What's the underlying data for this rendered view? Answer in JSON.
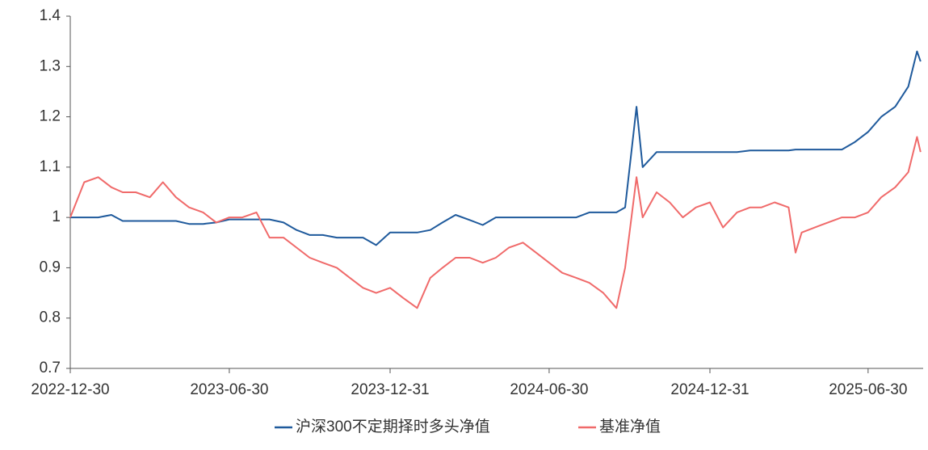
{
  "chart_data": {
    "type": "line",
    "x": [
      "2022-12-30",
      "2023-01-15",
      "2023-01-31",
      "2023-02-15",
      "2023-02-28",
      "2023-03-15",
      "2023-03-31",
      "2023-04-15",
      "2023-04-30",
      "2023-05-15",
      "2023-05-31",
      "2023-06-15",
      "2023-06-30",
      "2023-07-15",
      "2023-07-31",
      "2023-08-15",
      "2023-08-31",
      "2023-09-15",
      "2023-09-30",
      "2023-10-15",
      "2023-10-31",
      "2023-11-15",
      "2023-11-30",
      "2023-12-15",
      "2023-12-31",
      "2024-01-15",
      "2024-01-31",
      "2024-02-15",
      "2024-02-29",
      "2024-03-15",
      "2024-03-31",
      "2024-04-15",
      "2024-04-30",
      "2024-05-15",
      "2024-05-31",
      "2024-06-15",
      "2024-06-30",
      "2024-07-15",
      "2024-07-31",
      "2024-08-15",
      "2024-08-31",
      "2024-09-15",
      "2024-09-25",
      "2024-10-08",
      "2024-10-15",
      "2024-10-31",
      "2024-11-15",
      "2024-11-30",
      "2024-12-15",
      "2024-12-31",
      "2025-01-15",
      "2025-01-31",
      "2025-02-15",
      "2025-02-28",
      "2025-03-15",
      "2025-03-31",
      "2025-04-08",
      "2025-04-15",
      "2025-04-30",
      "2025-05-15",
      "2025-05-31",
      "2025-06-15",
      "2025-06-30",
      "2025-07-15",
      "2025-07-31",
      "2025-08-15",
      "2025-08-25",
      "2025-08-29"
    ],
    "series": [
      {
        "name": "沪深300不定期择时多头净值",
        "color": "#1f5a9c",
        "values": [
          1.0,
          1.0,
          1.0,
          1.005,
          0.993,
          0.993,
          0.993,
          0.993,
          0.993,
          0.987,
          0.987,
          0.99,
          0.996,
          0.996,
          0.996,
          0.996,
          0.99,
          0.975,
          0.965,
          0.965,
          0.96,
          0.96,
          0.96,
          0.945,
          0.97,
          0.97,
          0.97,
          0.975,
          0.99,
          1.005,
          0.995,
          0.985,
          1.0,
          1.0,
          1.0,
          1.0,
          1.0,
          1.0,
          1.0,
          1.01,
          1.01,
          1.01,
          1.02,
          1.22,
          1.1,
          1.13,
          1.13,
          1.13,
          1.13,
          1.13,
          1.13,
          1.13,
          1.133,
          1.133,
          1.133,
          1.133,
          1.135,
          1.135,
          1.135,
          1.135,
          1.135,
          1.15,
          1.17,
          1.2,
          1.22,
          1.26,
          1.33,
          1.31
        ]
      },
      {
        "name": "基准净值",
        "color": "#f06a6a",
        "values": [
          1.0,
          1.07,
          1.08,
          1.06,
          1.05,
          1.05,
          1.04,
          1.07,
          1.04,
          1.02,
          1.01,
          0.99,
          1.0,
          1.0,
          1.01,
          0.96,
          0.96,
          0.94,
          0.92,
          0.91,
          0.9,
          0.88,
          0.86,
          0.85,
          0.86,
          0.84,
          0.82,
          0.88,
          0.9,
          0.92,
          0.92,
          0.91,
          0.92,
          0.94,
          0.95,
          0.93,
          0.91,
          0.89,
          0.88,
          0.87,
          0.85,
          0.82,
          0.9,
          1.08,
          1.0,
          1.05,
          1.03,
          1.0,
          1.02,
          1.03,
          0.98,
          1.01,
          1.02,
          1.02,
          1.03,
          1.02,
          0.93,
          0.97,
          0.98,
          0.99,
          1.0,
          1.0,
          1.01,
          1.04,
          1.06,
          1.09,
          1.16,
          1.13
        ]
      }
    ],
    "xlim": [
      "2022-12-30",
      "2025-09-01"
    ],
    "xticks": [
      "2022-12-30",
      "2023-06-30",
      "2023-12-31",
      "2024-06-30",
      "2024-12-31",
      "2025-06-30"
    ],
    "ylim": [
      0.7,
      1.4
    ],
    "yticks": [
      0.7,
      0.8,
      0.9,
      1,
      1.1,
      1.2,
      1.3,
      1.4
    ],
    "legend": "bottom"
  }
}
